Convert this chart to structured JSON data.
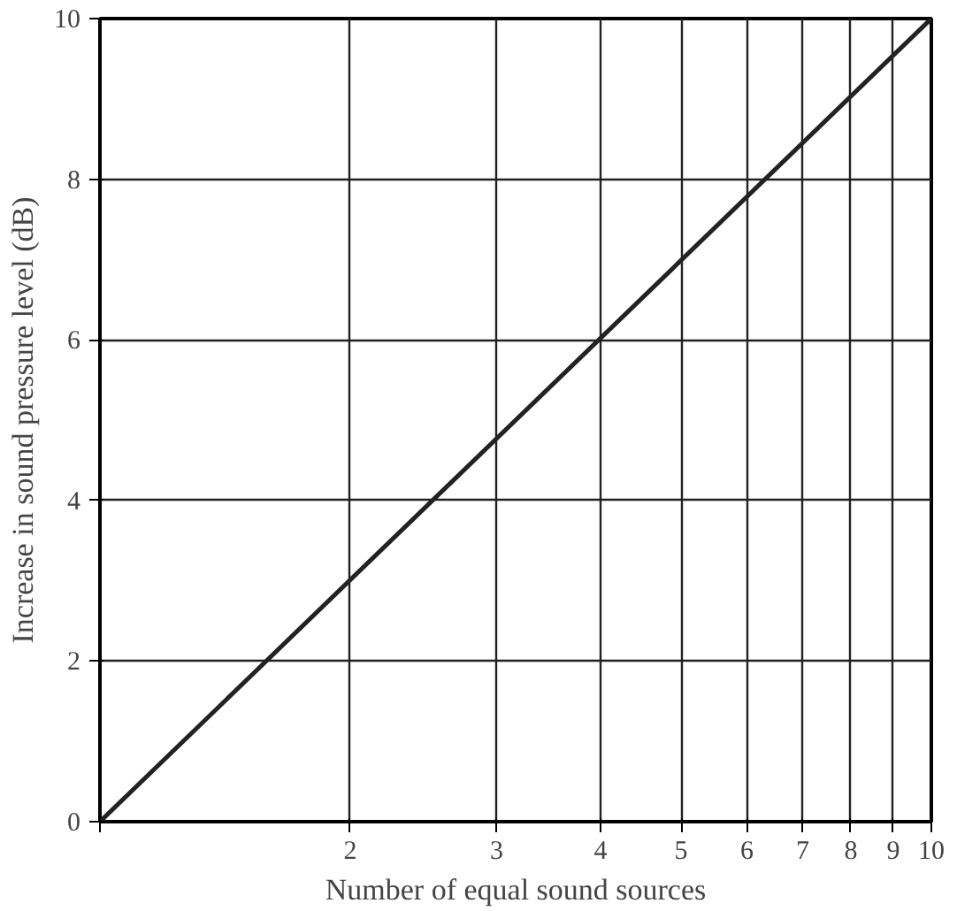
{
  "chart_data": {
    "type": "line",
    "xlabel": "Number of equal sound sources",
    "ylabel": "Increase in sound pressure level (dB)",
    "x": [
      1,
      10
    ],
    "series": [
      {
        "color": "#222222",
        "values": [
          0,
          10
        ]
      }
    ],
    "log": "x",
    "xlim": [
      1,
      10
    ],
    "ylim": [
      0,
      10
    ],
    "xticks": [
      {
        "value": 1,
        "label": null
      },
      2,
      3,
      4,
      5,
      6,
      7,
      8,
      9,
      10
    ],
    "yticks": [
      0,
      2,
      4,
      6,
      8,
      10
    ],
    "grid": true,
    "marker": "none",
    "line_style": "solid"
  }
}
